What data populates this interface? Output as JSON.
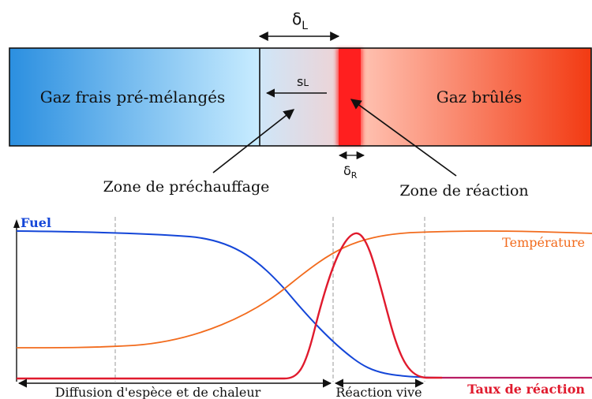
{
  "flame_diagram": {
    "fresh_gas_label": "Gaz frais pré-mélangés",
    "burnt_gas_label": "Gaz brûlés",
    "flame_thickness_symbol": "δ",
    "flame_thickness_sub": "L",
    "flame_speed_symbol": "s",
    "flame_speed_sub": "L",
    "reaction_thickness_symbol": "δ",
    "reaction_thickness_sub": "R",
    "preheat_zone_label": "Zone de préchauffage",
    "reaction_zone_label": "Zone de réaction",
    "colors": {
      "fresh_gas": "#2b8fe0",
      "fresh_gas_light": "#c8ecff",
      "preheat_mid": "#e8d8dc",
      "reaction": "#ff1f1f",
      "burnt_gas_light": "#ffc2b2",
      "burnt_gas": "#f23a12"
    }
  },
  "profile_plot": {
    "fuel_label": "Fuel",
    "temperature_label": "Température",
    "reaction_rate_label": "Taux de réaction",
    "diffusion_zone_label": "Diffusion d'espèce et de chaleur",
    "reaction_zone_label": "Réaction vive",
    "colors": {
      "fuel": "#1446d8",
      "temperature": "#f26b1d",
      "reaction_rate": "#e01a2d",
      "guide": "#9a9a9a"
    }
  }
}
